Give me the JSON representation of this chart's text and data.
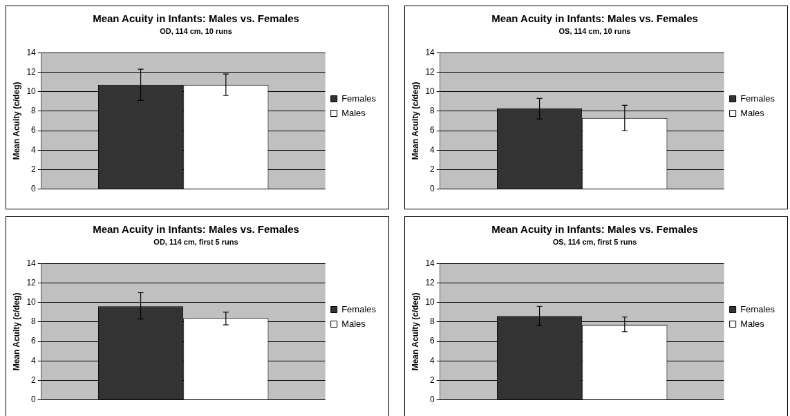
{
  "chart_data": [
    {
      "type": "bar",
      "title": "Mean Acuity in Infants: Males vs. Females",
      "subtitle": "OD, 114 cm, 10 runs",
      "ylabel": "Mean Acuity (c/deg)",
      "categories": [
        null
      ],
      "series": [
        {
          "name": "Females",
          "color": "#333333",
          "values": [
            10.7
          ],
          "errors": [
            [
              9.1,
              12.3
            ]
          ]
        },
        {
          "name": "Males",
          "color": "#ffffff",
          "values": [
            10.7
          ],
          "errors": [
            [
              9.6,
              11.8
            ]
          ]
        }
      ],
      "ylim": [
        0,
        14
      ],
      "yticks": [
        0,
        2,
        4,
        6,
        8,
        10,
        12,
        14
      ],
      "grid": "y",
      "legend": "right"
    },
    {
      "type": "bar",
      "title": "Mean Acuity in Infants: Males vs. Females",
      "subtitle": "OS, 114 cm, 10 runs",
      "ylabel": "Mean Acuity (c/deg)",
      "categories": [
        null
      ],
      "series": [
        {
          "name": "Females",
          "color": "#333333",
          "values": [
            8.3
          ],
          "errors": [
            [
              7.2,
              9.3
            ]
          ]
        },
        {
          "name": "Males",
          "color": "#ffffff",
          "values": [
            7.3
          ],
          "errors": [
            [
              6.0,
              8.6
            ]
          ]
        }
      ],
      "ylim": [
        0,
        14
      ],
      "yticks": [
        0,
        2,
        4,
        6,
        8,
        10,
        12,
        14
      ],
      "grid": "y",
      "legend": "right"
    },
    {
      "type": "bar",
      "title": "Mean Acuity in Infants: Males vs. Females",
      "subtitle": "OD, 114 cm, first 5 runs",
      "ylabel": "Mean Acuity (c/deg)",
      "categories": [
        null
      ],
      "series": [
        {
          "name": "Females",
          "color": "#333333",
          "values": [
            9.6
          ],
          "errors": [
            [
              8.3,
              11.0
            ]
          ]
        },
        {
          "name": "Males",
          "color": "#ffffff",
          "values": [
            8.4
          ],
          "errors": [
            [
              7.7,
              9.0
            ]
          ]
        }
      ],
      "ylim": [
        0,
        14
      ],
      "yticks": [
        0,
        2,
        4,
        6,
        8,
        10,
        12,
        14
      ],
      "grid": "y",
      "legend": "right"
    },
    {
      "type": "bar",
      "title": "Mean Acuity in Infants: Males vs. Females",
      "subtitle": "OS, 114 cm, first 5 runs",
      "ylabel": "Mean Acuity (c/deg)",
      "categories": [
        null
      ],
      "series": [
        {
          "name": "Females",
          "color": "#333333",
          "values": [
            8.6
          ],
          "errors": [
            [
              7.6,
              9.6
            ]
          ]
        },
        {
          "name": "Males",
          "color": "#ffffff",
          "values": [
            7.7
          ],
          "errors": [
            [
              7.0,
              8.5
            ]
          ]
        }
      ],
      "ylim": [
        0,
        14
      ],
      "yticks": [
        0,
        2,
        4,
        6,
        8,
        10,
        12,
        14
      ],
      "grid": "y",
      "legend": "right"
    }
  ]
}
